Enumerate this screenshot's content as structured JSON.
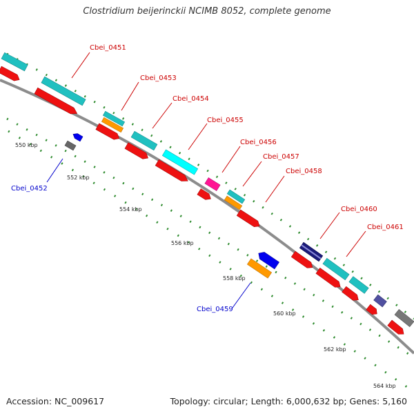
{
  "title": "Clostridium beijerinckii NCIMB 8052, complete genome",
  "footer": {
    "accession": "Accession: NC_009617",
    "topology": "Topology: circular; Length: 6,000,632 bp; Genes: 5,160"
  },
  "colors": {
    "backbone": "#8c8c8c",
    "plus_label": "#cc0000",
    "minus_label": "#0000cc",
    "tick": "#2e8b2e"
  },
  "genes": [
    {
      "label": "Cbei_0451",
      "strand": "plus"
    },
    {
      "label": "Cbei_0452",
      "strand": "minus"
    },
    {
      "label": "Cbei_0453",
      "strand": "plus"
    },
    {
      "label": "Cbei_0454",
      "strand": "plus"
    },
    {
      "label": "Cbei_0455",
      "strand": "plus"
    },
    {
      "label": "Cbei_0456",
      "strand": "plus"
    },
    {
      "label": "Cbei_0457",
      "strand": "plus"
    },
    {
      "label": "Cbei_0458",
      "strand": "plus"
    },
    {
      "label": "Cbei_0459",
      "strand": "minus"
    },
    {
      "label": "Cbei_0460",
      "strand": "plus"
    },
    {
      "label": "Cbei_0461",
      "strand": "plus"
    }
  ],
  "position_labels": [
    "550 kbp",
    "552 kbp",
    "554 kbp",
    "556 kbp",
    "558 kbp",
    "560 kbp",
    "562 kbp",
    "564 kbp"
  ]
}
